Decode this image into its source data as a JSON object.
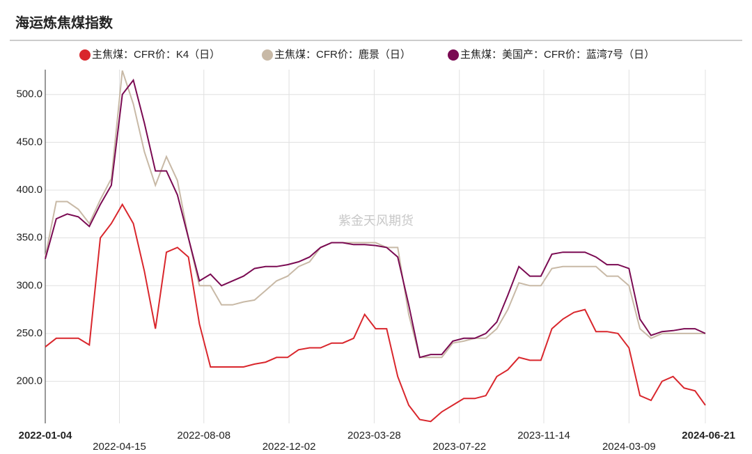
{
  "chart_data": {
    "type": "line",
    "title": "海运炼焦煤指数",
    "annotation": "紫金天风期货",
    "x": [
      "2022-01-04",
      "2022-01-19",
      "2022-02-03",
      "2022-02-18",
      "2022-03-05",
      "2022-03-20",
      "2022-04-04",
      "2022-04-19",
      "2022-05-04",
      "2022-05-19",
      "2022-06-03",
      "2022-06-18",
      "2022-07-03",
      "2022-07-18",
      "2022-08-02",
      "2022-08-17",
      "2022-09-01",
      "2022-09-16",
      "2022-10-01",
      "2022-10-16",
      "2022-10-31",
      "2022-11-15",
      "2022-11-30",
      "2022-12-15",
      "2022-12-30",
      "2023-01-14",
      "2023-01-29",
      "2023-02-13",
      "2023-02-28",
      "2023-03-15",
      "2023-03-30",
      "2023-04-14",
      "2023-04-29",
      "2023-05-14",
      "2023-05-29",
      "2023-06-13",
      "2023-06-28",
      "2023-07-13",
      "2023-07-28",
      "2023-08-12",
      "2023-08-27",
      "2023-09-11",
      "2023-09-26",
      "2023-10-11",
      "2023-10-26",
      "2023-11-10",
      "2023-11-25",
      "2023-12-10",
      "2023-12-25",
      "2024-01-09",
      "2024-01-24",
      "2024-02-08",
      "2024-02-23",
      "2024-03-09",
      "2024-03-24",
      "2024-04-08",
      "2024-04-23",
      "2024-05-08",
      "2024-05-23",
      "2024-06-07",
      "2024-06-21"
    ],
    "series": [
      {
        "name": "主焦煤：CFR价：K4（日）",
        "color": "#d9262c",
        "values": [
          236,
          245,
          245,
          245,
          238,
          350,
          365,
          385,
          365,
          315,
          255,
          335,
          340,
          330,
          260,
          215,
          215,
          215,
          215,
          218,
          220,
          225,
          225,
          233,
          235,
          235,
          240,
          240,
          245,
          270,
          255,
          255,
          205,
          175,
          160,
          158,
          168,
          175,
          182,
          182,
          185,
          205,
          212,
          225,
          222,
          222,
          255,
          265,
          272,
          275,
          252,
          252,
          250,
          235,
          185,
          180,
          200,
          205,
          193,
          190,
          175
        ]
      },
      {
        "name": "主焦煤：CFR价：鹿景（日）",
        "color": "#c8b9a6",
        "values": [
          330,
          388,
          388,
          380,
          365,
          390,
          412,
          525,
          490,
          440,
          405,
          435,
          410,
          350,
          300,
          300,
          280,
          280,
          283,
          285,
          295,
          305,
          310,
          320,
          325,
          340,
          345,
          345,
          345,
          345,
          345,
          340,
          340,
          270,
          225,
          225,
          225,
          240,
          242,
          245,
          245,
          255,
          275,
          303,
          300,
          300,
          318,
          320,
          320,
          320,
          320,
          310,
          310,
          300,
          255,
          245,
          250,
          250,
          250,
          250,
          250
        ]
      },
      {
        "name": "主焦煤：美国产：CFR价：蓝湾7号（日）",
        "color": "#7a0a52",
        "values": [
          328,
          370,
          375,
          372,
          362,
          385,
          405,
          500,
          515,
          470,
          420,
          420,
          395,
          350,
          305,
          312,
          300,
          305,
          310,
          318,
          320,
          320,
          322,
          325,
          330,
          340,
          345,
          345,
          343,
          343,
          342,
          340,
          330,
          280,
          225,
          228,
          228,
          242,
          245,
          245,
          250,
          262,
          290,
          320,
          310,
          310,
          333,
          335,
          335,
          335,
          330,
          322,
          322,
          318,
          265,
          248,
          252,
          253,
          255,
          255,
          250
        ]
      }
    ],
    "xlim": [
      "2022-01-04",
      "2024-06-21"
    ],
    "xticks": [
      "2022-01-04",
      "2022-04-15",
      "2022-08-08",
      "2022-12-02",
      "2023-03-28",
      "2023-07-22",
      "2023-11-14",
      "2024-03-09",
      "2024-06-21"
    ],
    "ylim": [
      156,
      526
    ],
    "yticks": [
      {
        "value": 200,
        "label": "200.0"
      },
      {
        "value": 250,
        "label": "250.0"
      },
      {
        "value": 300,
        "label": "300.0"
      },
      {
        "value": 350,
        "label": "350.0"
      },
      {
        "value": 400,
        "label": "400.0"
      },
      {
        "value": 450,
        "label": "450.0"
      },
      {
        "value": 500,
        "label": "500.0"
      }
    ],
    "grid": true,
    "legend": "top"
  }
}
